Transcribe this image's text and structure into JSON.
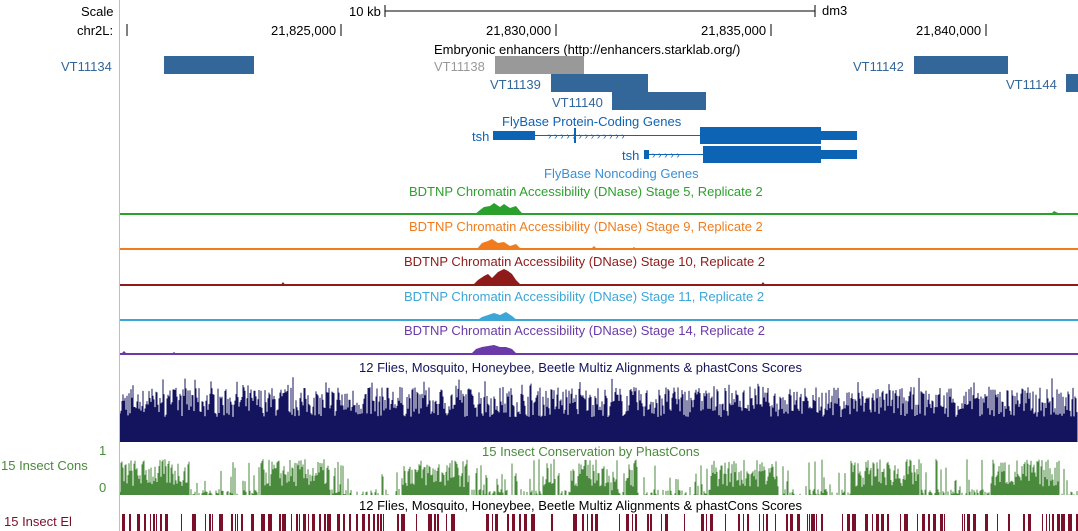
{
  "ruler": {
    "scale_label": "Scale",
    "chrom_label": "chr2L:",
    "scale_text": "10 kb",
    "assembly": "dm3",
    "positions": [
      "21,825,000",
      "21,830,000",
      "21,835,000",
      "21,840,000"
    ]
  },
  "enhancers": {
    "title": "Embryonic enhancers (http://enhancers.starklab.org/)",
    "left_label": "VT11134",
    "items": [
      "VT11138",
      "VT11139",
      "VT11140",
      "VT11142",
      "VT11144"
    ],
    "color": "#336699",
    "grey_color": "#999999"
  },
  "genes": {
    "title": "FlyBase Protein-Coding Genes",
    "gene1": "tsh",
    "gene2": "tsh",
    "noncoding_title": "FlyBase Noncoding Genes",
    "color": "#0d63b4"
  },
  "dnase": [
    {
      "title": "BDTNP Chromatin Accessibility (DNase) Stage 5, Replicate 2",
      "color": "#2ca02c"
    },
    {
      "title": "BDTNP Chromatin Accessibility (DNase) Stage 9, Replicate 2",
      "color": "#f07c1e"
    },
    {
      "title": "BDTNP Chromatin Accessibility (DNase) Stage 10, Replicate 2",
      "color": "#8e1a1a"
    },
    {
      "title": "BDTNP Chromatin Accessibility (DNase) Stage 11, Replicate 2",
      "color": "#3ca6d6"
    },
    {
      "title": "BDTNP Chromatin Accessibility (DNase) Stage 14, Replicate 2",
      "color": "#6a3aa8"
    }
  ],
  "multiz": {
    "title": "12 Flies, Mosquito, Honeybee, Beetle Multiz Alignments & phastCons Scores",
    "color": "#14145e"
  },
  "cons15": {
    "title": "15 Insect Conservation by PhastCons",
    "left_label": "15 Insect Cons",
    "tick_top": "1",
    "tick_bottom": "0",
    "color": "#4a8a3c"
  },
  "elements": {
    "title": "12 Flies, Mosquito, Honeybee, Beetle Multiz Alignments & phastCons Scores",
    "left_label": "15 Insect El",
    "color": "#7a0f2a"
  }
}
